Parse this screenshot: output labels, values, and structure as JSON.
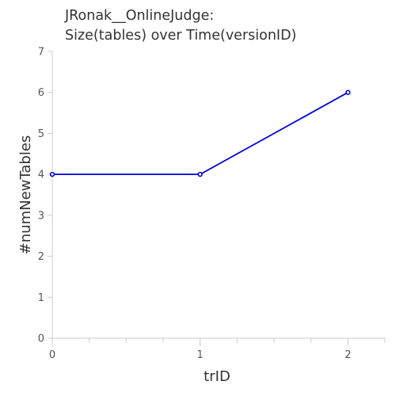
{
  "chart_data": {
    "type": "line",
    "title_lines": [
      "JRonak__OnlineJudge:",
      "Size(tables) over Time(versionID)"
    ],
    "xlabel": "trID",
    "ylabel": "#numNewTables",
    "x": [
      0,
      1,
      2
    ],
    "series": [
      {
        "values": [
          4,
          4,
          6
        ],
        "color": "#0000dd"
      }
    ],
    "xlim": [
      0,
      2.25
    ],
    "ylim": [
      0,
      7
    ],
    "xticks": [
      0,
      1,
      2
    ],
    "yticks": [
      0,
      1,
      2,
      3,
      4,
      5,
      6,
      7
    ],
    "x_minor_ticks": [
      0.25,
      0.5,
      0.75,
      1.25,
      1.5,
      1.75,
      2.25
    ],
    "grid": false,
    "axis_color": "#cccccc"
  }
}
